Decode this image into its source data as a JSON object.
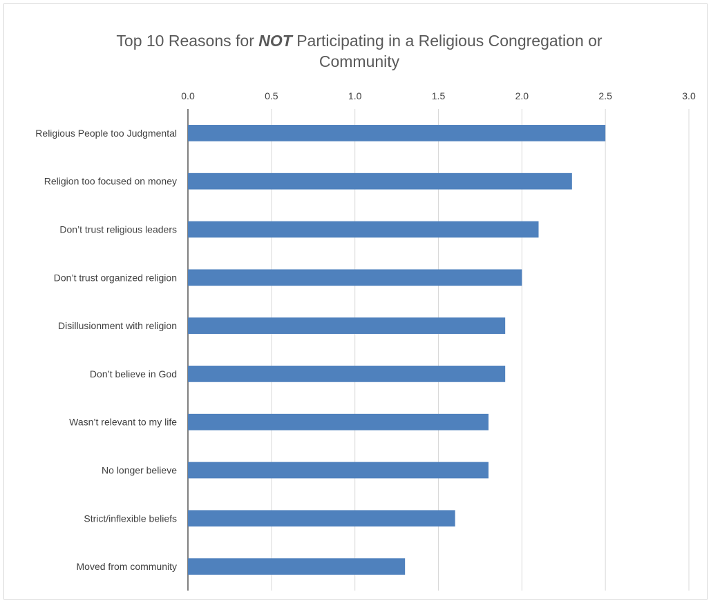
{
  "chart_data": {
    "type": "bar",
    "orientation": "horizontal",
    "title_parts": {
      "before": "Top 10 Reasons for ",
      "emphasis": "NOT",
      "after": " Participating in a Religious Congregation or Community"
    },
    "categories": [
      "Religious People too Judgmental",
      "Religion too focused on money",
      "Don’t trust religious leaders",
      "Don’t trust organized religion",
      "Disillusionment with religion",
      "Don’t believe in God",
      "Wasn’t relevant to my life",
      "No longer believe",
      "Strict/inflexible beliefs",
      "Moved from community"
    ],
    "values": [
      2.5,
      2.3,
      2.1,
      2.0,
      1.9,
      1.9,
      1.8,
      1.8,
      1.6,
      1.3
    ],
    "xlim": [
      0,
      3.0
    ],
    "ticks": [
      "0.0",
      "0.5",
      "1.0",
      "1.5",
      "2.0",
      "2.5",
      "3.0"
    ],
    "tick_values": [
      0,
      0.5,
      1.0,
      1.5,
      2.0,
      2.5,
      3.0
    ],
    "axis_position": "top",
    "grid": true,
    "legend": "none",
    "bar_color": "#4f81bd",
    "grid_color": "#d9d9d9"
  }
}
